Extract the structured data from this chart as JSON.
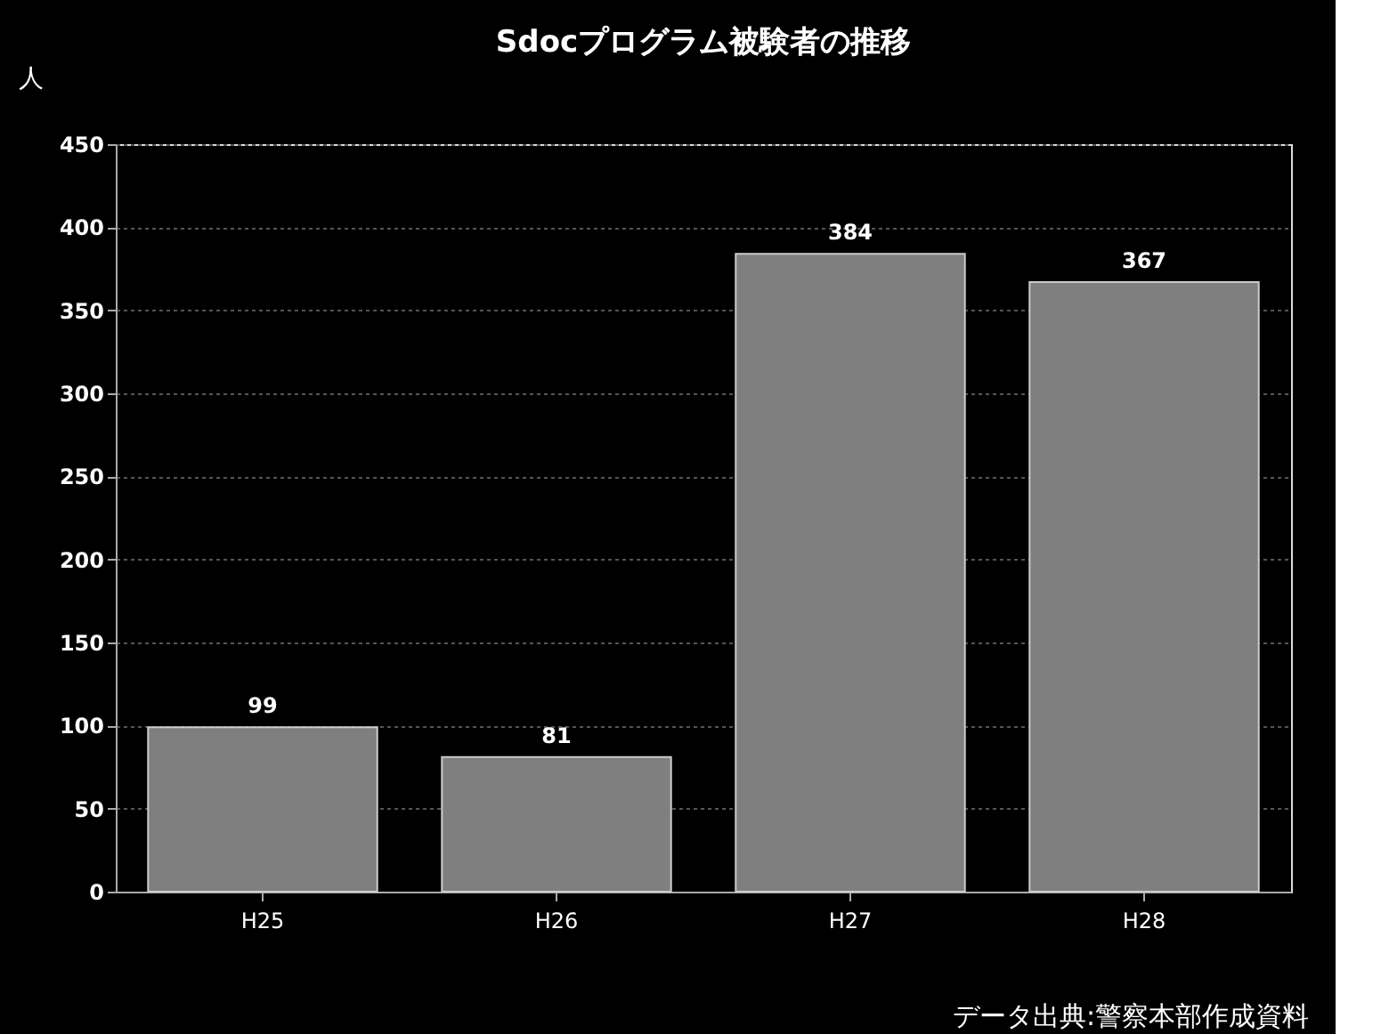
{
  "chart_data": {
    "type": "bar",
    "title": "Sdocプログラム被験者の推移",
    "ylabel": "人",
    "categories": [
      "H25",
      "H26",
      "H27",
      "H28"
    ],
    "values": [
      99,
      81,
      384,
      367
    ],
    "color": "#7f7f7f",
    "ylim": [
      0,
      450
    ],
    "yticks": [
      0,
      50,
      100,
      150,
      200,
      250,
      300,
      350,
      400,
      450
    ],
    "grid": "y",
    "data_labels": true,
    "annotations": [
      "データ出典:警察本部作成資料"
    ]
  }
}
